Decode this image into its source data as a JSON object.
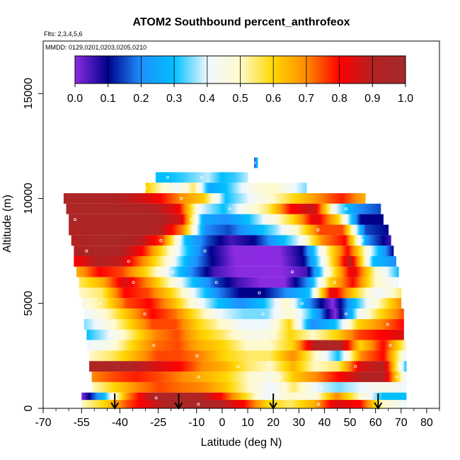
{
  "chart_data": {
    "type": "heatmap",
    "title": "ATOM2 Southbound percent_anthrofeox",
    "subtitle": "Flts: 2,3,4,5,6",
    "annotation": "MMDD: 0129,0201,0203,0205,0210",
    "xlabel": "Latitude (deg N)",
    "ylabel": "Altitude (m)",
    "xlim": [
      -70,
      85
    ],
    "ylim": [
      0,
      17500
    ],
    "x_ticks": [
      -70,
      -55,
      -40,
      -25,
      -10,
      0,
      10,
      20,
      30,
      40,
      50,
      60,
      70,
      80
    ],
    "x_tick_labels": [
      "-70",
      "-55",
      "-40",
      "-25",
      "-10",
      "0",
      "10",
      "20",
      "30",
      "40",
      "50",
      "60",
      "70",
      "80"
    ],
    "y_ticks": [
      0,
      5000,
      10000,
      15000
    ],
    "y_tick_labels": [
      "0",
      "5000",
      "10000",
      "15000"
    ],
    "colorbar": {
      "range": [
        0,
        1
      ],
      "tick_values": [
        0.0,
        0.1,
        0.2,
        0.3,
        0.4,
        0.5,
        0.6,
        0.7,
        0.8,
        0.9,
        1.0
      ],
      "tick_labels": [
        "0.0",
        "0.1",
        "0.2",
        "0.3",
        "0.4",
        "0.5",
        "0.6",
        "0.7",
        "0.8",
        "0.9",
        "1.0"
      ],
      "colors": [
        "#8a2be2",
        "#00008b",
        "#1e90ff",
        "#00bfff",
        "#f0f8ff",
        "#fffacd",
        "#ffd700",
        "#ff8c00",
        "#ff0000",
        "#b22222",
        "#a52a2a"
      ]
    },
    "rows": [
      {
        "alt": 11700,
        "lat_min": 12.5,
        "lat_max": 14,
        "v": [
          0.15,
          0.2,
          0.35
        ]
      },
      {
        "alt": 11000,
        "lat_min": -26,
        "lat_max": 10,
        "v": [
          0.3,
          0.3,
          0.32,
          0.35,
          0.38,
          0.3,
          0.32,
          0.38
        ]
      },
      {
        "alt": 10500,
        "lat_min": -30,
        "lat_max": 33,
        "v": [
          0.62,
          0.5,
          0.42,
          0.55,
          0.25,
          0.3,
          0.4,
          0.48,
          0.5,
          0.42,
          0.35
        ]
      },
      {
        "alt": 10000,
        "lat_min": -62,
        "lat_max": 56,
        "v": [
          0.95,
          0.95,
          0.92,
          0.88,
          0.82,
          0.7,
          0.62,
          0.3,
          0.4,
          0.5,
          0.6,
          0.7,
          0.78,
          0.65
        ]
      },
      {
        "alt": 9500,
        "lat_min": -61,
        "lat_max": 62,
        "v": [
          0.95,
          0.95,
          0.95,
          0.93,
          0.9,
          0.82,
          0.4,
          0.3,
          0.45,
          0.55,
          0.8,
          0.88,
          0.4,
          0.2,
          0.15
        ]
      },
      {
        "alt": 9000,
        "lat_min": -60,
        "lat_max": 63,
        "v": [
          0.95,
          0.95,
          0.95,
          0.95,
          0.92,
          0.85,
          0.25,
          0.2,
          0.3,
          0.45,
          0.6,
          0.85,
          0.6,
          0.1,
          0.1
        ]
      },
      {
        "alt": 8500,
        "lat_min": -60,
        "lat_max": 65,
        "v": [
          0.92,
          0.95,
          0.95,
          0.95,
          0.9,
          0.7,
          0.2,
          0.15,
          0.25,
          0.35,
          0.5,
          0.75,
          0.75,
          0.15,
          0.1
        ]
      },
      {
        "alt": 8000,
        "lat_min": -59,
        "lat_max": 66,
        "v": [
          0.9,
          0.95,
          0.95,
          0.9,
          0.75,
          0.3,
          0.15,
          0.05,
          0.1,
          0.25,
          0.4,
          0.7,
          0.8,
          0.2,
          0.05
        ]
      },
      {
        "alt": 7500,
        "lat_min": -58,
        "lat_max": 67,
        "v": [
          0.9,
          0.95,
          0.92,
          0.8,
          0.55,
          0.3,
          0.1,
          0.0,
          0.0,
          0.0,
          0.1,
          0.5,
          0.8,
          0.4,
          0.1
        ]
      },
      {
        "alt": 7000,
        "lat_min": -58,
        "lat_max": 68,
        "v": [
          0.8,
          0.9,
          0.88,
          0.7,
          0.5,
          0.25,
          0.1,
          0.0,
          0.0,
          0.0,
          0.1,
          0.5,
          0.9,
          0.3,
          0.2
        ]
      },
      {
        "alt": 6500,
        "lat_min": -57,
        "lat_max": 69,
        "v": [
          0.65,
          0.8,
          0.75,
          0.6,
          0.4,
          0.2,
          0.05,
          0.0,
          0.0,
          0.0,
          0.05,
          0.5,
          0.85,
          0.5,
          0.3
        ]
      },
      {
        "alt": 6000,
        "lat_min": -56,
        "lat_max": 69,
        "v": [
          0.55,
          0.65,
          0.85,
          0.7,
          0.5,
          0.3,
          0.15,
          0.05,
          0.0,
          0.0,
          0.2,
          0.6,
          0.8,
          0.5,
          0.4
        ]
      },
      {
        "alt": 5500,
        "lat_min": -56,
        "lat_max": 70,
        "v": [
          0.5,
          0.55,
          0.8,
          0.75,
          0.6,
          0.4,
          0.2,
          0.1,
          0.1,
          0.2,
          0.3,
          0.85,
          0.6,
          0.4,
          0.55
        ]
      },
      {
        "alt": 5000,
        "lat_min": -55,
        "lat_max": 70,
        "v": [
          0.45,
          0.55,
          0.75,
          0.8,
          0.65,
          0.45,
          0.3,
          0.2,
          0.3,
          0.5,
          0.2,
          0.0,
          0.3,
          0.5,
          0.7
        ]
      },
      {
        "alt": 4500,
        "lat_min": -54,
        "lat_max": 71,
        "v": [
          0.4,
          0.5,
          0.65,
          0.8,
          0.72,
          0.55,
          0.4,
          0.35,
          0.35,
          0.5,
          0.3,
          0.0,
          0.4,
          0.6,
          0.75
        ]
      },
      {
        "alt": 4000,
        "lat_min": -54,
        "lat_max": 71,
        "v": [
          0.35,
          0.45,
          0.6,
          0.75,
          0.75,
          0.6,
          0.5,
          0.4,
          0.4,
          0.6,
          0.2,
          0.3,
          0.6,
          0.7,
          0.8
        ]
      },
      {
        "alt": 3500,
        "lat_min": -53,
        "lat_max": 71,
        "v": [
          0.3,
          0.4,
          0.55,
          0.7,
          0.75,
          0.62,
          0.55,
          0.45,
          0.45,
          0.6,
          0.5,
          0.6,
          0.75,
          0.8,
          0.85
        ]
      },
      {
        "alt": 3000,
        "lat_min": -53,
        "lat_max": 72,
        "v": [
          0.4,
          0.45,
          0.6,
          0.72,
          0.75,
          0.65,
          0.6,
          0.5,
          0.5,
          0.6,
          0.9,
          0.95,
          0.6,
          0.8,
          0.5
        ]
      },
      {
        "alt": 2500,
        "lat_min": -52,
        "lat_max": 72,
        "v": [
          0.5,
          0.55,
          0.65,
          0.75,
          0.75,
          0.7,
          0.6,
          0.55,
          0.55,
          0.7,
          0.5,
          0.3,
          0.7,
          0.8,
          0.4
        ]
      },
      {
        "alt": 2000,
        "lat_min": -52,
        "lat_max": 72,
        "v": [
          0.92,
          0.95,
          0.9,
          0.85,
          0.8,
          0.7,
          0.65,
          0.55,
          0.5,
          0.65,
          0.5,
          0.55,
          0.85,
          0.9,
          0.3
        ]
      },
      {
        "alt": 1500,
        "lat_min": -51,
        "lat_max": 72,
        "v": [
          0.7,
          0.75,
          0.78,
          0.75,
          0.7,
          0.65,
          0.6,
          0.5,
          0.45,
          0.62,
          0.7,
          0.8,
          0.9,
          0.9,
          0.4
        ]
      },
      {
        "alt": 1000,
        "lat_min": -51,
        "lat_max": 72,
        "v": [
          0.5,
          0.6,
          0.7,
          0.75,
          0.72,
          0.7,
          0.62,
          0.5,
          0.4,
          0.55,
          0.4,
          0.35,
          0.4,
          0.45,
          0.4
        ]
      },
      {
        "alt": 500,
        "lat_min": -55,
        "lat_max": 72,
        "v": [
          0.0,
          0.3,
          0.7,
          0.9,
          0.95,
          0.92,
          0.8,
          0.6,
          0.4,
          0.5,
          0.45,
          0.7,
          0.5,
          0.3,
          0.3
        ]
      },
      {
        "alt": 150,
        "lat_min": -55,
        "lat_max": 72,
        "v": [
          0.5,
          0.6,
          0.75,
          0.85,
          0.95,
          0.95,
          0.9,
          0.8,
          0.6,
          0.55,
          0.65,
          0.85,
          0.8,
          0.5,
          0.4
        ]
      }
    ],
    "arrows_at_lat": [
      -42,
      -17,
      20,
      61
    ]
  }
}
